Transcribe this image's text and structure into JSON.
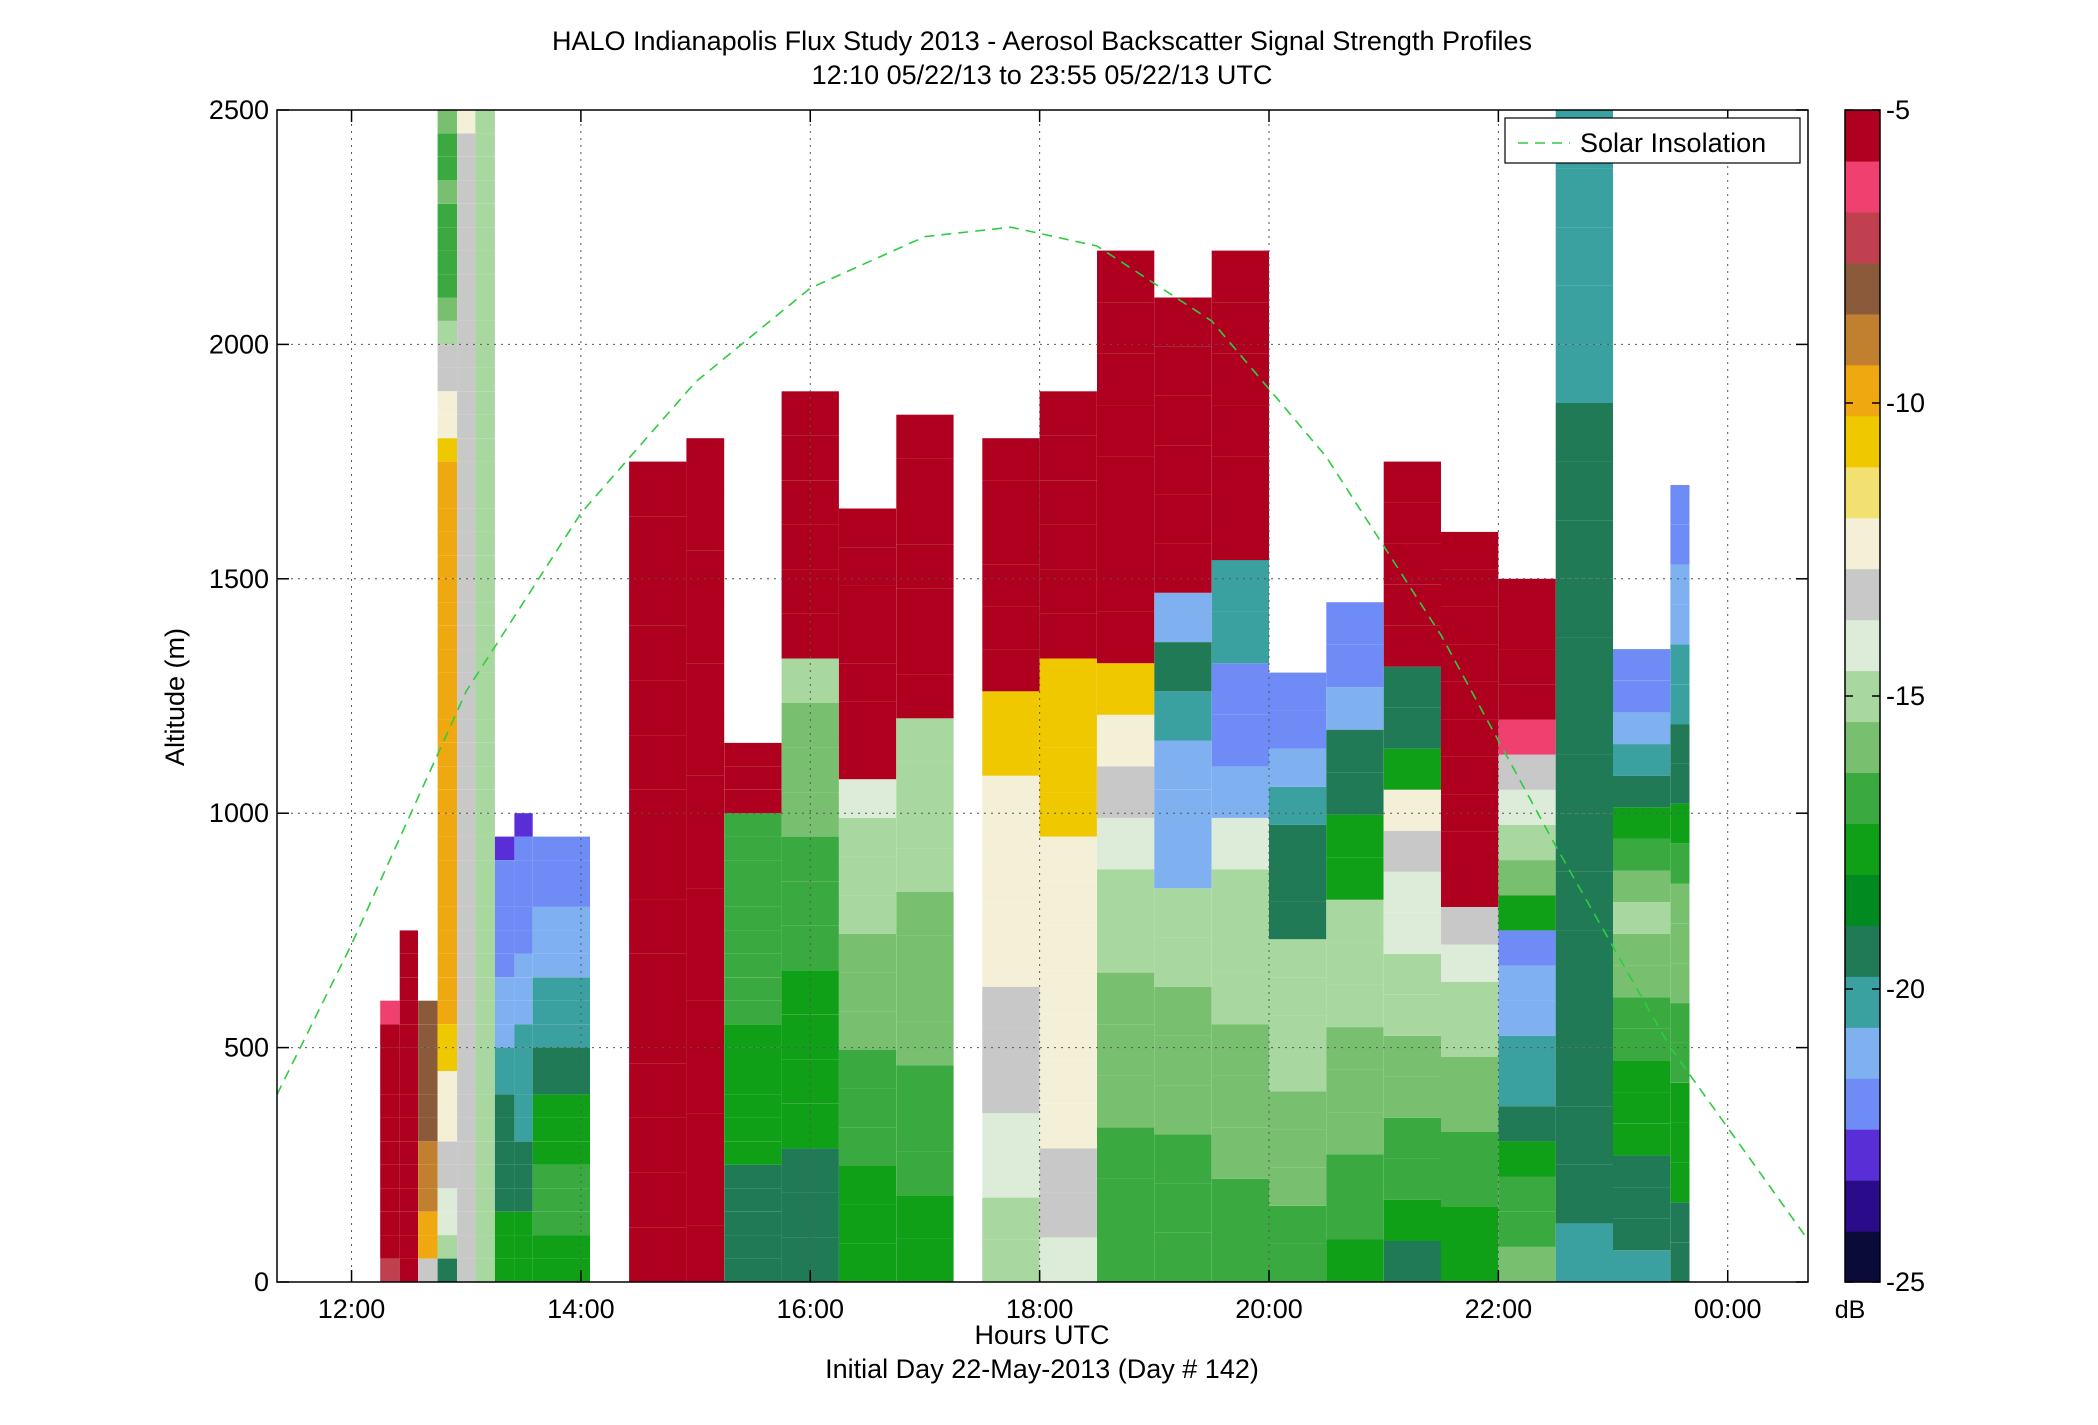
{
  "chart_data": {
    "type": "heatmap",
    "title": "HALO Indianapolis Flux Study 2013 - Aerosol Backscatter Signal Strength Profiles",
    "subtitle": "12:10 05/22/13 to 23:55 05/22/13  UTC",
    "xlabel": "Hours UTC",
    "xlabel2": "Initial Day 22-May-2013 (Day # 142)",
    "ylabel": "Altitude (m)",
    "xlim": [
      11.35,
      24.7
    ],
    "ylim": [
      0,
      2500
    ],
    "x_ticks": [
      12,
      14,
      16,
      18,
      20,
      22,
      24
    ],
    "x_tick_labels": [
      "12:00",
      "14:00",
      "16:00",
      "18:00",
      "20:00",
      "22:00",
      "00:00"
    ],
    "y_ticks": [
      0,
      500,
      1000,
      1500,
      2000,
      2500
    ],
    "y_tick_labels": [
      "0",
      "500",
      "1000",
      "1500",
      "2000",
      "2500"
    ],
    "grid": true,
    "legend": {
      "position": "top-right",
      "entries": [
        "Solar Insolation"
      ]
    },
    "colorbar": {
      "label": "dB",
      "range": [
        -25,
        -5
      ],
      "ticks": [
        -5,
        -10,
        -15,
        -20,
        -25
      ],
      "tick_labels": [
        "-5",
        "-10",
        "-15",
        "-20",
        "-25"
      ],
      "colors": [
        "#0b0b3a",
        "#2a0c8a",
        "#5a2ed6",
        "#6f8cf6",
        "#7fb0f0",
        "#3aa0a0",
        "#1f7a55",
        "#008a20",
        "#10a018",
        "#3aaa40",
        "#78c070",
        "#a8d8a0",
        "#dcecd8",
        "#c8c8c8",
        "#f4f0d8",
        "#f2e070",
        "#f0c800",
        "#f0a810",
        "#c08030",
        "#8a5a3a",
        "#c04050",
        "#f04070",
        "#b00020"
      ]
    },
    "series": [
      {
        "name": "Solar Insolation",
        "type": "line",
        "color": "#2ecc40",
        "x": [
          11.35,
          12.0,
          13.0,
          14.0,
          15.0,
          16.0,
          17.0,
          17.75,
          18.5,
          19.5,
          20.5,
          21.5,
          22.5,
          23.5,
          24.7
        ],
        "y": [
          400,
          720,
          1260,
          1640,
          1920,
          2120,
          2230,
          2250,
          2210,
          2050,
          1760,
          1380,
          930,
          500,
          90
        ]
      }
    ],
    "bin_width_hours": 0.1667,
    "bin_height_m": 50,
    "profiles": [
      {
        "t": 12.25,
        "top": 600,
        "v": [
          -7,
          -5,
          -5,
          -5,
          -5,
          -5,
          -5,
          -5,
          -5,
          -5,
          -5,
          -6
        ]
      },
      {
        "t": 12.42,
        "top": 750,
        "v": [
          -5,
          -5,
          -5,
          -5,
          -5,
          -5,
          -5,
          -5,
          -5,
          -5,
          -5,
          -5,
          -5,
          -5,
          -5
        ]
      },
      {
        "t": 12.58,
        "top": 600,
        "v": [
          -13,
          -10,
          -10,
          -9,
          -9,
          -9,
          -8,
          -8,
          -8,
          -8,
          -8,
          -8
        ]
      },
      {
        "t": 12.75,
        "top": 2500,
        "v": [
          -19,
          -15,
          -14,
          -14,
          -13,
          -13,
          -12,
          -12,
          -12,
          -11,
          -11,
          -10,
          -10,
          -10,
          -10,
          -10,
          -10,
          -10,
          -10,
          -10,
          -10,
          -10,
          -10,
          -10,
          -10,
          -10,
          -10,
          -10,
          -10,
          -10,
          -10,
          -10,
          -10,
          -10,
          -10,
          -11,
          -12,
          -12,
          -13,
          -13,
          -15,
          -16,
          -17,
          -17,
          -17,
          -17,
          -16,
          -17,
          -17,
          -16
        ]
      },
      {
        "t": 12.92,
        "top": 2500,
        "v": [
          -13,
          -13,
          -13,
          -13,
          -13,
          -13,
          -13,
          -13,
          -13,
          -13,
          -13,
          -13,
          -13,
          -13,
          -13,
          -13,
          -13,
          -13,
          -13,
          -13,
          -13,
          -13,
          -13,
          -13,
          -13,
          -13,
          -13,
          -13,
          -13,
          -13,
          -13,
          -13,
          -13,
          -13,
          -13,
          -13,
          -13,
          -13,
          -13,
          -13,
          -13,
          -13,
          -13,
          -13,
          -13,
          -13,
          -13,
          -13,
          -13,
          -12
        ]
      },
      {
        "t": 13.08,
        "top": 2500,
        "v": [
          -15,
          -15,
          -15,
          -15,
          -15,
          -15,
          -15,
          -15,
          -15,
          -15,
          -15,
          -15,
          -15,
          -15,
          -15,
          -15,
          -15,
          -15,
          -15,
          -15,
          -15,
          -15,
          -15,
          -15,
          -15,
          -15,
          -15,
          -15,
          -15,
          -15,
          -15,
          -15,
          -15,
          -15,
          -15,
          -15,
          -15,
          -15,
          -15,
          -15,
          -15,
          -15,
          -15,
          -15,
          -15,
          -15,
          -15,
          -15,
          -15,
          -15
        ]
      },
      {
        "t": 13.25,
        "top": 950,
        "v": [
          -18,
          -18,
          -18,
          -19,
          -19,
          -19,
          -19,
          -19,
          -20,
          -20,
          -21,
          -21,
          -21,
          -22,
          -22,
          -22,
          -22,
          -22,
          -23
        ]
      },
      {
        "t": 13.42,
        "top": 1000,
        "v": [
          -18,
          -18,
          -18,
          -19,
          -19,
          -19,
          -20,
          -20,
          -20,
          -20,
          -20,
          -21,
          -21,
          -21,
          -22,
          -22,
          -22,
          -22,
          -22,
          -23
        ]
      },
      {
        "t": 13.58,
        "top": 950,
        "v": [
          -18,
          -18,
          -17,
          -17,
          -17,
          -18,
          -18,
          -18,
          -19,
          -19,
          -20,
          -20,
          -20,
          -21,
          -21,
          -21,
          -22,
          -22,
          -22
        ]
      },
      {
        "t": 14.42,
        "top": 1750,
        "v": [
          -5,
          -5,
          -5,
          -5,
          -5,
          -5,
          -5,
          -5,
          -5,
          -5,
          -5,
          -5,
          -5,
          -5,
          -5
        ]
      },
      {
        "t": 14.92,
        "top": 1800,
        "v": [
          -5,
          -5,
          -5,
          -5,
          -5,
          -5,
          -5,
          -5,
          -5,
          -5,
          -5,
          -5,
          -5,
          -5,
          -5
        ]
      },
      {
        "t": 15.25,
        "top": 1150,
        "v": [
          -19,
          -19,
          -19,
          -19,
          -19,
          -18,
          -18,
          -18,
          -18,
          -18,
          -18,
          -17,
          -17,
          -17,
          -17,
          -17,
          -17,
          -17,
          -17,
          -17,
          -5,
          -5,
          -5
        ]
      },
      {
        "t": 15.75,
        "top": 1900,
        "v": [
          -19,
          -19,
          -19,
          -18,
          -18,
          -18,
          -18,
          -17,
          -17,
          -17,
          -16,
          -16,
          -16,
          -15,
          -5,
          -5,
          -5,
          -5,
          -5,
          -5
        ]
      },
      {
        "t": 16.25,
        "top": 1650,
        "v": [
          -18,
          -18,
          -18,
          -17,
          -17,
          -17,
          -16,
          -16,
          -16,
          -15,
          -15,
          -15,
          -14,
          -5,
          -5,
          -5,
          -5,
          -5,
          -5,
          -5
        ]
      },
      {
        "t": 16.75,
        "top": 1850,
        "v": [
          -18,
          -18,
          -17,
          -17,
          -17,
          -16,
          -16,
          -16,
          -16,
          -15,
          -15,
          -15,
          -15,
          -5,
          -5,
          -5,
          -5,
          -5,
          -5,
          -5
        ]
      },
      {
        "t": 17.5,
        "top": 1800,
        "v": [
          -15,
          -15,
          -14,
          -14,
          -13,
          -13,
          -13,
          -12,
          -12,
          -12,
          -12,
          -12,
          -11,
          -11,
          -5,
          -5,
          -5,
          -5,
          -5,
          -5
        ]
      },
      {
        "t": 18.0,
        "top": 1900,
        "v": [
          -14,
          -13,
          -13,
          -12,
          -12,
          -12,
          -12,
          -12,
          -12,
          -12,
          -11,
          -11,
          -11,
          -11,
          -5,
          -5,
          -5,
          -5,
          -5,
          -5
        ]
      },
      {
        "t": 18.5,
        "top": 2200,
        "v": [
          -17,
          -17,
          -17,
          -16,
          -16,
          -16,
          -15,
          -15,
          -14,
          -13,
          -12,
          -11,
          -5,
          -5,
          -5,
          -5,
          -5,
          -5,
          -5,
          -5
        ]
      },
      {
        "t": 19.0,
        "top": 2100,
        "v": [
          -17,
          -17,
          -17,
          -16,
          -16,
          -16,
          -15,
          -15,
          -21,
          -21,
          -21,
          -20,
          -19,
          -21,
          -5,
          -5,
          -5,
          -5,
          -5,
          -5
        ]
      },
      {
        "t": 19.5,
        "top": 2200,
        "v": [
          -17,
          -17,
          -16,
          -16,
          -16,
          -15,
          -15,
          -15,
          -14,
          -21,
          -22,
          -22,
          -20,
          -20,
          -5,
          -5,
          -5,
          -5,
          -5,
          -5
        ]
      },
      {
        "t": 20.0,
        "top": 1300,
        "v": [
          -17,
          -17,
          -16,
          -16,
          -16,
          -15,
          -15,
          -15,
          -15,
          -19,
          -19,
          -19,
          -20,
          -21,
          -22,
          -22
        ]
      },
      {
        "t": 20.5,
        "top": 1450,
        "v": [
          -18,
          -17,
          -17,
          -16,
          -16,
          -16,
          -15,
          -15,
          -15,
          -18,
          -18,
          -19,
          -19,
          -21,
          -22,
          -22
        ]
      },
      {
        "t": 21.0,
        "top": 1750,
        "v": [
          -19,
          -18,
          -17,
          -17,
          -16,
          -16,
          -15,
          -15,
          -14,
          -14,
          -13,
          -12,
          -18,
          -19,
          -19,
          -5,
          -5,
          -5,
          -5,
          -5
        ]
      },
      {
        "t": 21.5,
        "top": 1600,
        "v": [
          -18,
          -18,
          -17,
          -17,
          -16,
          -16,
          -15,
          -15,
          -14,
          -13,
          -5,
          -5,
          -5,
          -5,
          -5,
          -5,
          -5,
          -5,
          -5,
          -5
        ]
      },
      {
        "t": 22.0,
        "top": 1500,
        "v": [
          -16,
          -17,
          -17,
          -18,
          -19,
          -20,
          -20,
          -21,
          -21,
          -22,
          -18,
          -16,
          -15,
          -14,
          -13,
          -6,
          -5,
          -5,
          -5,
          -5
        ]
      },
      {
        "t": 22.5,
        "top": 2500,
        "v": [
          -20,
          -19,
          -19,
          -19,
          -19,
          -19,
          -19,
          -19,
          -19,
          -19,
          -19,
          -19,
          -19,
          -19,
          -19,
          -20,
          -20,
          -20,
          -20,
          -20
        ]
      },
      {
        "t": 23.0,
        "top": 1350,
        "v": [
          -20,
          -19,
          -19,
          -19,
          -18,
          -18,
          -18,
          -17,
          -17,
          -16,
          -16,
          -15,
          -16,
          -17,
          -18,
          -19,
          -20,
          -21,
          -22,
          -22
        ]
      },
      {
        "t": 23.5,
        "top": 1700,
        "v": [
          -19,
          -19,
          -18,
          -18,
          -18,
          -17,
          -17,
          -16,
          -16,
          -16,
          -17,
          -18,
          -19,
          -19,
          -20,
          -20,
          -21,
          -21,
          -22,
          -22
        ]
      }
    ]
  }
}
